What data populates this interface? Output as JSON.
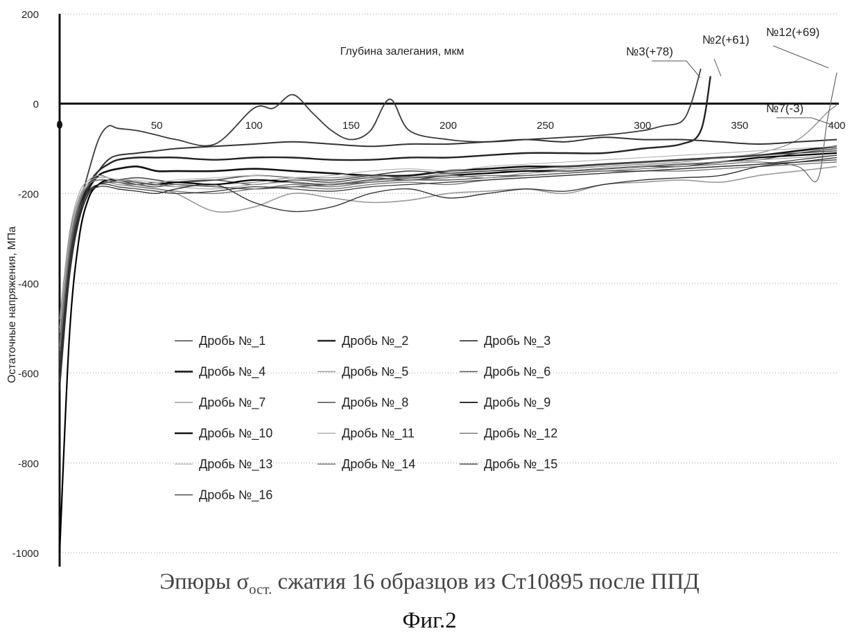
{
  "chart_data": {
    "type": "line",
    "title": "Глубина залегания, мкм",
    "xlabel": "",
    "ylabel": "Остаточные напряжения, МПа",
    "xlim": [
      0,
      400
    ],
    "ylim": [
      -1000,
      200
    ],
    "x_ticks": [
      "50",
      "100",
      "150",
      "200",
      "250",
      "300",
      "350",
      "400"
    ],
    "y_ticks": [
      "200",
      "0",
      "-200",
      "-400",
      "-600",
      "-800",
      "-1000"
    ],
    "grid": "horizontal dotted",
    "legend_position": "inside-center",
    "series": [
      {
        "name": "Дробь №_1",
        "x": [
          0,
          5,
          10,
          15,
          20,
          25,
          30,
          40,
          50,
          60,
          80,
          100,
          120,
          140,
          160,
          180,
          200,
          220,
          240,
          260,
          280,
          300,
          320,
          340,
          360,
          380,
          400
        ],
        "y": [
          -560,
          -330,
          -230,
          -180,
          -160,
          -165,
          -170,
          -180,
          -185,
          -175,
          -170,
          -180,
          -170,
          -175,
          -165,
          -170,
          -160,
          -165,
          -155,
          -150,
          -145,
          -140,
          -140,
          -130,
          -125,
          -110,
          -100
        ]
      },
      {
        "name": "Дробь №_2",
        "x": [
          0,
          5,
          10,
          15,
          20,
          25,
          30,
          40,
          50,
          60,
          80,
          100,
          120,
          140,
          160,
          180,
          200,
          220,
          240,
          260,
          280,
          300,
          320,
          330,
          335
        ],
        "y": [
          -580,
          -360,
          -240,
          -180,
          -150,
          -135,
          -125,
          -120,
          -120,
          -120,
          -125,
          -120,
          -120,
          -125,
          -125,
          -120,
          -120,
          -115,
          -110,
          -110,
          -110,
          -100,
          -90,
          -60,
          61
        ]
      },
      {
        "name": "Дробь №_3",
        "x": [
          0,
          5,
          10,
          15,
          20,
          25,
          30,
          40,
          50,
          60,
          80,
          100,
          110,
          120,
          130,
          140,
          150,
          160,
          170,
          180,
          200,
          220,
          240,
          260,
          280,
          300,
          310,
          320,
          325,
          330
        ],
        "y": [
          -520,
          -330,
          -230,
          -150,
          -80,
          -50,
          -55,
          -60,
          -70,
          -80,
          -90,
          -10,
          -10,
          20,
          -20,
          -60,
          -80,
          -60,
          10,
          -60,
          -80,
          -85,
          -80,
          -75,
          -70,
          -60,
          -50,
          -40,
          0,
          78
        ]
      },
      {
        "name": "Дробь №_4",
        "x": [
          0,
          5,
          10,
          15,
          20,
          25,
          30,
          40,
          50,
          60,
          80,
          100,
          120,
          140,
          160,
          180,
          200,
          220,
          240,
          260,
          280,
          300,
          320,
          340,
          360,
          380,
          400
        ],
        "y": [
          -600,
          -380,
          -250,
          -190,
          -160,
          -150,
          -145,
          -140,
          -150,
          -150,
          -150,
          -145,
          -150,
          -155,
          -160,
          -160,
          -150,
          -145,
          -140,
          -140,
          -135,
          -130,
          -125,
          -120,
          -115,
          -105,
          -95
        ]
      },
      {
        "name": "Дробь №_5",
        "x": [
          0,
          5,
          10,
          15,
          20,
          25,
          30,
          40,
          50,
          60,
          80,
          100,
          120,
          140,
          160,
          180,
          200,
          220,
          240,
          260,
          280,
          300,
          320,
          340,
          360,
          380,
          400
        ],
        "y": [
          -540,
          -320,
          -220,
          -180,
          -170,
          -175,
          -180,
          -185,
          -190,
          -200,
          -240,
          -230,
          -200,
          -210,
          -220,
          -215,
          -200,
          -195,
          -190,
          -200,
          -180,
          -175,
          -170,
          -175,
          -160,
          -150,
          -140
        ]
      },
      {
        "name": "Дробь №_6",
        "x": [
          0,
          5,
          10,
          15,
          20,
          25,
          30,
          40,
          50,
          60,
          80,
          100,
          120,
          140,
          160,
          180,
          200,
          220,
          240,
          260,
          280,
          300,
          320,
          340,
          360,
          380,
          400
        ],
        "y": [
          -570,
          -340,
          -240,
          -195,
          -180,
          -175,
          -175,
          -180,
          -175,
          -180,
          -185,
          -190,
          -185,
          -180,
          -175,
          -170,
          -170,
          -165,
          -160,
          -155,
          -150,
          -150,
          -145,
          -140,
          -135,
          -130,
          -125
        ]
      },
      {
        "name": "Дробь №_7",
        "x": [
          0,
          5,
          10,
          15,
          20,
          25,
          30,
          40,
          50,
          60,
          80,
          100,
          120,
          140,
          160,
          180,
          200,
          220,
          240,
          260,
          280,
          300,
          320,
          340,
          360,
          380,
          395,
          400
        ],
        "y": [
          -500,
          -300,
          -210,
          -175,
          -165,
          -165,
          -170,
          -175,
          -180,
          -185,
          -180,
          -175,
          -165,
          -165,
          -160,
          -165,
          -155,
          -150,
          -150,
          -145,
          -140,
          -135,
          -130,
          -120,
          -110,
          -80,
          -20,
          -3
        ]
      },
      {
        "name": "Дробь №_8",
        "x": [
          0,
          5,
          10,
          15,
          20,
          25,
          30,
          40,
          50,
          60,
          80,
          100,
          120,
          140,
          160,
          180,
          200,
          220,
          240,
          260,
          280,
          300,
          320,
          340,
          360,
          380,
          400
        ],
        "y": [
          -620,
          -380,
          -260,
          -200,
          -180,
          -175,
          -170,
          -165,
          -170,
          -175,
          -170,
          -160,
          -165,
          -170,
          -160,
          -150,
          -155,
          -150,
          -145,
          -140,
          -135,
          -130,
          -125,
          -120,
          -115,
          -110,
          -105
        ]
      },
      {
        "name": "Дробь №_9",
        "x": [
          0,
          5,
          10,
          15,
          20,
          25,
          30,
          40,
          50,
          60,
          80,
          100,
          120,
          140,
          160,
          180,
          200,
          220,
          240,
          260,
          280,
          300,
          320,
          340,
          360,
          380,
          400
        ],
        "y": [
          -590,
          -360,
          -250,
          -185,
          -150,
          -125,
          -115,
          -110,
          -105,
          -100,
          -95,
          -90,
          -85,
          -90,
          -95,
          -90,
          -90,
          -85,
          -80,
          -85,
          -75,
          -80,
          -80,
          -85,
          -90,
          -85,
          -80
        ]
      },
      {
        "name": "Дробь №_10",
        "x": [
          0,
          5,
          10,
          15,
          20,
          25,
          30,
          40,
          50,
          60,
          80,
          100,
          120,
          140,
          160,
          180,
          200,
          220,
          240,
          260,
          280,
          300,
          320,
          340,
          360,
          380,
          400
        ],
        "y": [
          -1000,
          -520,
          -300,
          -210,
          -180,
          -170,
          -170,
          -175,
          -180,
          -175,
          -180,
          -170,
          -175,
          -180,
          -170,
          -165,
          -160,
          -155,
          -150,
          -150,
          -145,
          -140,
          -135,
          -130,
          -120,
          -115,
          -110
        ]
      },
      {
        "name": "Дробь №_11",
        "x": [
          0,
          5,
          10,
          15,
          20,
          25,
          30,
          40,
          50,
          60,
          80,
          100,
          120,
          140,
          160,
          180,
          200,
          220,
          240,
          260,
          280,
          300,
          320,
          340,
          360,
          380,
          400
        ],
        "y": [
          -480,
          -290,
          -200,
          -170,
          -160,
          -165,
          -170,
          -175,
          -180,
          -185,
          -190,
          -180,
          -175,
          -180,
          -170,
          -165,
          -160,
          -165,
          -155,
          -150,
          -145,
          -140,
          -135,
          -130,
          -125,
          -120,
          -115
        ]
      },
      {
        "name": "Дробь №_12",
        "x": [
          0,
          5,
          10,
          15,
          20,
          25,
          30,
          40,
          50,
          60,
          80,
          100,
          120,
          140,
          160,
          180,
          200,
          220,
          240,
          260,
          280,
          300,
          320,
          340,
          360,
          380,
          390,
          395,
          400
        ],
        "y": [
          -530,
          -320,
          -220,
          -180,
          -170,
          -170,
          -175,
          -180,
          -185,
          -180,
          -185,
          -190,
          -180,
          -185,
          -175,
          -170,
          -165,
          -160,
          -160,
          -155,
          -150,
          -145,
          -140,
          -135,
          -130,
          -140,
          -170,
          -40,
          69
        ]
      },
      {
        "name": "Дробь №_13",
        "x": [
          0,
          5,
          10,
          15,
          20,
          25,
          30,
          40,
          50,
          60,
          80,
          100,
          120,
          140,
          160,
          180,
          200,
          220,
          240,
          260,
          280,
          300,
          320,
          340,
          360,
          380,
          400
        ],
        "y": [
          -510,
          -310,
          -215,
          -175,
          -165,
          -165,
          -170,
          -170,
          -175,
          -170,
          -165,
          -160,
          -165,
          -160,
          -150,
          -145,
          -150,
          -140,
          -135,
          -130,
          -125,
          -120,
          -115,
          -110,
          -105,
          -100,
          -95
        ]
      },
      {
        "name": "Дробь №_14",
        "x": [
          0,
          5,
          10,
          15,
          20,
          25,
          30,
          40,
          50,
          60,
          80,
          100,
          120,
          140,
          160,
          180,
          200,
          220,
          240,
          260,
          280,
          300,
          320,
          340,
          360,
          380,
          400
        ],
        "y": [
          -550,
          -330,
          -225,
          -180,
          -170,
          -170,
          -175,
          -185,
          -190,
          -195,
          -200,
          -190,
          -185,
          -190,
          -180,
          -175,
          -180,
          -170,
          -165,
          -160,
          -155,
          -150,
          -150,
          -145,
          -140,
          -135,
          -130
        ]
      },
      {
        "name": "Дробь №_15",
        "x": [
          0,
          5,
          10,
          15,
          20,
          25,
          30,
          40,
          50,
          60,
          80,
          100,
          120,
          140,
          160,
          180,
          200,
          220,
          240,
          260,
          280,
          300,
          320,
          340,
          360,
          380,
          400
        ],
        "y": [
          -640,
          -390,
          -260,
          -200,
          -185,
          -185,
          -190,
          -195,
          -200,
          -190,
          -180,
          -220,
          -240,
          -230,
          -200,
          -190,
          -210,
          -200,
          -190,
          -195,
          -180,
          -170,
          -165,
          -160,
          -140,
          -130,
          -120
        ]
      },
      {
        "name": "Дробь №_16",
        "x": [
          0,
          5,
          10,
          15,
          20,
          25,
          30,
          40,
          50,
          60,
          80,
          100,
          120,
          140,
          160,
          180,
          200,
          220,
          240,
          260,
          280,
          300,
          320,
          340,
          360,
          380,
          400
        ],
        "y": [
          -610,
          -370,
          -250,
          -195,
          -180,
          -180,
          -185,
          -190,
          -195,
          -200,
          -195,
          -185,
          -190,
          -195,
          -185,
          -180,
          -175,
          -170,
          -165,
          -160,
          -155,
          -150,
          -145,
          -140,
          -135,
          -125,
          -115
        ]
      }
    ],
    "annotations": [
      {
        "text": "№3(+78)",
        "x": 330,
        "y": 78
      },
      {
        "text": "№2(+61)",
        "x": 335,
        "y": 61
      },
      {
        "text": "№12(+69)",
        "x": 400,
        "y": 69
      },
      {
        "text": "№7(-3)",
        "x": 400,
        "y": -3
      }
    ],
    "series_colors": [
      "#444444",
      "#222222",
      "#3a3a3a",
      "#111111",
      "#9a9a9a",
      "#555555",
      "#888888",
      "#4a4a4a",
      "#333333",
      "#000000",
      "#a0a0a0",
      "#666666",
      "#b0b0b0",
      "#777777",
      "#2a2a2a",
      "#303030"
    ],
    "series_widths": [
      1.4,
      2.4,
      1.8,
      2.6,
      1.6,
      1.5,
      1.3,
      1.6,
      2.0,
      2.2,
      1.2,
      1.2,
      1.1,
      1.4,
      1.3,
      1.2
    ]
  },
  "caption": {
    "prefix": "Эпюры σ",
    "subscript": "ост.",
    "suffix": " сжатия 16 образцов из Ст10895 после ППД"
  },
  "figure_label": "Фиг.2"
}
